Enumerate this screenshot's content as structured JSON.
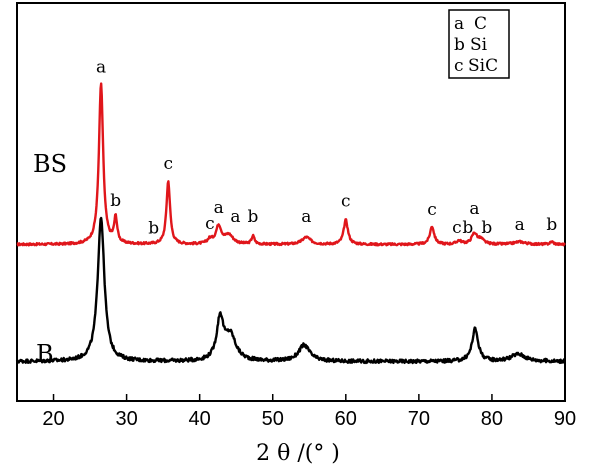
{
  "chart_data": {
    "type": "line",
    "xlabel": "2 θ /(°  )",
    "xlim": [
      15,
      90
    ],
    "x_ticks": [
      20,
      30,
      40,
      50,
      60,
      70,
      80,
      90
    ],
    "grid": false,
    "legend": {
      "placement": "top-right",
      "entries": [
        {
          "key": "a",
          "phase": "C"
        },
        {
          "key": "b",
          "phase": "Si"
        },
        {
          "key": "c",
          "phase": "SiC"
        }
      ]
    },
    "series": [
      {
        "name": "BS",
        "color": "#e0161b",
        "baseline": 1.45,
        "noise": 0.012,
        "peaks": [
          {
            "x": 26.5,
            "h": 1.78,
            "w": 0.35
          },
          {
            "x": 28.5,
            "h": 0.28,
            "w": 0.25
          },
          {
            "x": 35.7,
            "h": 0.7,
            "w": 0.3
          },
          {
            "x": 41.4,
            "h": 0.05,
            "w": 0.4
          },
          {
            "x": 42.6,
            "h": 0.2,
            "w": 0.45
          },
          {
            "x": 44.0,
            "h": 0.1,
            "w": 0.7
          },
          {
            "x": 47.3,
            "h": 0.09,
            "w": 0.25
          },
          {
            "x": 54.6,
            "h": 0.08,
            "w": 0.7
          },
          {
            "x": 60.0,
            "h": 0.27,
            "w": 0.35
          },
          {
            "x": 71.8,
            "h": 0.2,
            "w": 0.35
          },
          {
            "x": 75.5,
            "h": 0.04,
            "w": 0.4
          },
          {
            "x": 77.6,
            "h": 0.12,
            "w": 0.45
          },
          {
            "x": 78.5,
            "h": 0.05,
            "w": 0.5
          },
          {
            "x": 83.8,
            "h": 0.03,
            "w": 0.9
          },
          {
            "x": 88.2,
            "h": 0.03,
            "w": 0.3
          }
        ],
        "peak_labels": [
          {
            "text": "a",
            "x": 26.5,
            "y": 3.36
          },
          {
            "text": "b",
            "x": 28.5,
            "y": 1.88
          },
          {
            "text": "b",
            "x": 33.7,
            "y": 1.57
          },
          {
            "text": "c",
            "x": 35.7,
            "y": 2.29
          },
          {
            "text": "c",
            "x": 41.4,
            "y": 1.62
          },
          {
            "text": "a",
            "x": 42.6,
            "y": 1.8
          },
          {
            "text": "a",
            "x": 44.9,
            "y": 1.7
          },
          {
            "text": "b",
            "x": 47.3,
            "y": 1.7
          },
          {
            "text": "a",
            "x": 54.6,
            "y": 1.7
          },
          {
            "text": "c",
            "x": 60.0,
            "y": 1.87
          },
          {
            "text": "c",
            "x": 71.8,
            "y": 1.78
          },
          {
            "text": "c",
            "x": 75.2,
            "y": 1.58
          },
          {
            "text": "b",
            "x": 76.7,
            "y": 1.58
          },
          {
            "text": "a",
            "x": 77.6,
            "y": 1.79
          },
          {
            "text": "b",
            "x": 79.3,
            "y": 1.58
          },
          {
            "text": "a",
            "x": 83.8,
            "y": 1.61
          },
          {
            "text": "b",
            "x": 88.2,
            "y": 1.61
          }
        ]
      },
      {
        "name": "B",
        "color": "#000000",
        "baseline": 0.15,
        "noise": 0.02,
        "peaks": [
          {
            "x": 26.5,
            "h": 1.6,
            "w": 0.55
          },
          {
            "x": 42.8,
            "h": 0.46,
            "w": 0.55
          },
          {
            "x": 44.2,
            "h": 0.28,
            "w": 0.9
          },
          {
            "x": 54.3,
            "h": 0.18,
            "w": 0.9
          },
          {
            "x": 77.7,
            "h": 0.36,
            "w": 0.5
          },
          {
            "x": 83.6,
            "h": 0.08,
            "w": 1.2
          }
        ],
        "peak_labels": []
      }
    ]
  }
}
